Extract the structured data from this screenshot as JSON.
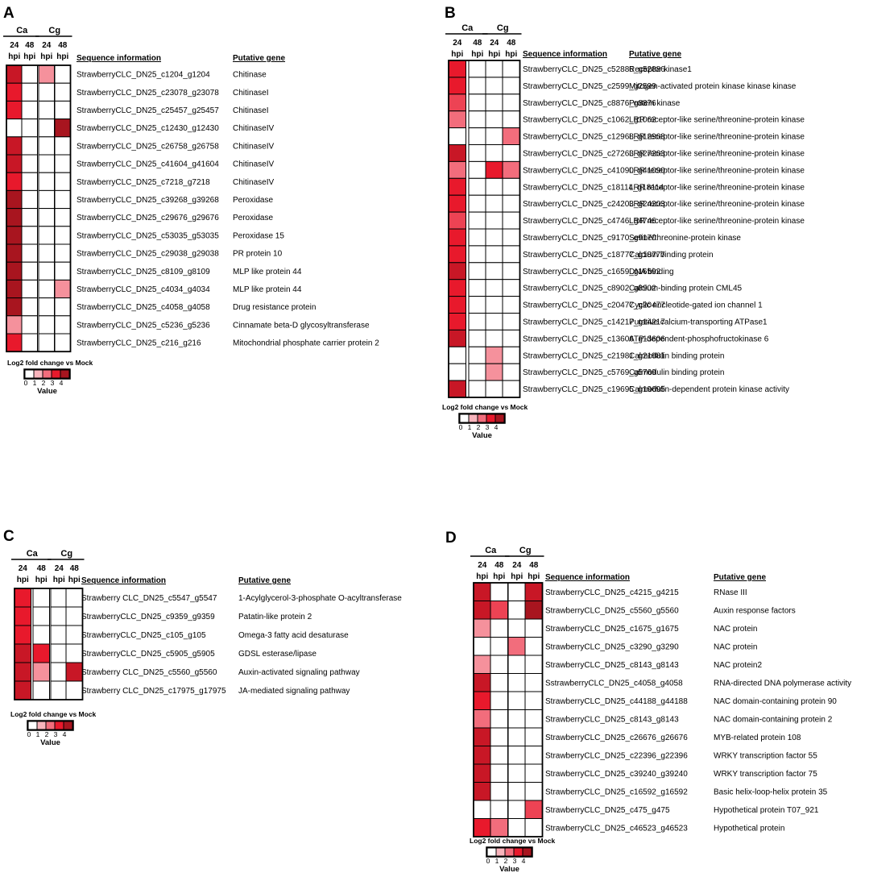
{
  "chart_data": [
    {
      "type": "heatmap",
      "panel_label": "A",
      "group_labels": [
        "Ca",
        "Cg"
      ],
      "columns": [
        [
          "24",
          "hpi"
        ],
        [
          "48",
          "hpi"
        ],
        [
          "24",
          "hpi"
        ],
        [
          "48",
          "hpi"
        ]
      ],
      "column_headers": [
        "Sequence information",
        "Putative gene"
      ],
      "rows": [
        {
          "seq": "StrawberryCLC_DN25_c1204_g1204",
          "gene": "Chitinase",
          "values": [
            3.5,
            0,
            1.5,
            0
          ]
        },
        {
          "seq": "StrawberryCLC_DN25_c23078_g23078",
          "gene": "ChitinaseI",
          "values": [
            3,
            0,
            0,
            0
          ]
        },
        {
          "seq": "StrawberryCLC_DN25_c25457_g25457",
          "gene": "ChitinaseI",
          "values": [
            3,
            0,
            0,
            0
          ]
        },
        {
          "seq": "StrawberryCLC_DN25_c12430_g12430",
          "gene": "ChitinaseIV",
          "values": [
            0,
            0,
            0,
            4
          ]
        },
        {
          "seq": "StrawberryCLC_DN25_c26758_g26758",
          "gene": "ChitinaseIV",
          "values": [
            3.5,
            0,
            0,
            0
          ]
        },
        {
          "seq": "StrawberryCLC_DN25_c41604_g41604",
          "gene": "ChitinaseIV",
          "values": [
            3.5,
            0,
            0,
            0
          ]
        },
        {
          "seq": "StrawberryCLC_DN25_c7218_g7218",
          "gene": "ChitinaseIV",
          "values": [
            3,
            0,
            0,
            0
          ]
        },
        {
          "seq": "StrawberryCLC_DN25_c39268_g39268",
          "gene": "Peroxidase",
          "values": [
            4,
            0,
            0,
            0
          ]
        },
        {
          "seq": "StrawberryCLC_DN25_c29676_g29676",
          "gene": "Peroxidase",
          "values": [
            4,
            0,
            0,
            0
          ]
        },
        {
          "seq": "StrawberryCLC_DN25_c53035_g53035",
          "gene": "Peroxidase 15",
          "values": [
            4,
            0,
            0,
            0
          ]
        },
        {
          "seq": "StrawberryCLC_DN25_c29038_g29038",
          "gene": "PR protein 10",
          "values": [
            4,
            0,
            0,
            0
          ]
        },
        {
          "seq": "StrawberryCLC_DN25_c8109_g8109",
          "gene": "MLP like protein 44",
          "values": [
            4,
            0,
            0,
            0
          ]
        },
        {
          "seq": "StrawberryCLC_DN25_c4034_g4034",
          "gene": "MLP like protein 44",
          "values": [
            4,
            0,
            0,
            1.5
          ]
        },
        {
          "seq": "StrawberryCLC_DN25_c4058_g4058",
          "gene": "Drug resistance protein",
          "values": [
            4,
            0,
            0,
            0
          ]
        },
        {
          "seq": "StrawberryCLC_DN25_c5236_g5236",
          "gene": "Cinnamate beta-D glycosyltransferase",
          "values": [
            1.5,
            0,
            0,
            0
          ]
        },
        {
          "seq": "StrawberryCLC_DN25_c216_g216",
          "gene": "Mitochondrial phosphate carrier protein 2",
          "values": [
            3,
            0,
            0,
            0
          ]
        }
      ],
      "legend": {
        "title": "Log2 fold change vs Mock",
        "ticks": [
          "0",
          "1",
          "2",
          "3",
          "4"
        ],
        "label": "Value"
      }
    },
    {
      "type": "heatmap",
      "panel_label": "B",
      "group_labels": [
        "Ca",
        "Cg"
      ],
      "columns": [
        [
          "24",
          "hpi"
        ],
        [
          "48",
          "hpi"
        ],
        [
          "24",
          "hpi"
        ],
        [
          "48",
          "hpi"
        ]
      ],
      "column_headers": [
        "Sequence information",
        "Putative gene"
      ],
      "rows": [
        {
          "seq": "StrawberryCLC_DN25_c52886_g52886",
          "gene": "Receptor kinase1",
          "values": [
            3,
            0,
            0,
            0
          ]
        },
        {
          "seq": "StrawberryCLC_DN25_c2599_g2599",
          "gene": "Mitogen-activated protein kinase kinase kinase",
          "values": [
            3,
            0,
            0,
            0
          ]
        },
        {
          "seq": "StrawberryCLC_DN25_c8876_g8876",
          "gene": "Protein kinase",
          "values": [
            2.5,
            0,
            0,
            0
          ]
        },
        {
          "seq": "StrawberryCLC_DN25_c1062_g1062",
          "gene": "LRR receptor-like serine/threonine-protein kinase",
          "values": [
            2,
            0,
            0,
            0
          ]
        },
        {
          "seq": "StrawberryCLC_DN25_c12968_g12968",
          "gene": "LRR receptor-like serine/threonine-protein kinase",
          "values": [
            0,
            0,
            0,
            2
          ]
        },
        {
          "seq": "StrawberryCLC_DN25_c27263_g27263",
          "gene": "LRR receptor-like serine/threonine-protein kinase",
          "values": [
            3.5,
            0,
            0,
            0
          ]
        },
        {
          "seq": "StrawberryCLC_DN25_c41090_g41090",
          "gene": "LRR receptor-like serine/threonine-protein kinase",
          "values": [
            2,
            0,
            3,
            2
          ]
        },
        {
          "seq": "StrawberryCLC_DN25_c18114_g18114",
          "gene": "LRR receptor-like serine/threonine-protein kinase",
          "values": [
            3,
            0,
            0,
            0
          ]
        },
        {
          "seq": "StrawberryCLC_DN25_c24203_g24203",
          "gene": "LRR receptor-like serine/threonine-protein kinase",
          "values": [
            3,
            0,
            0,
            0
          ]
        },
        {
          "seq": "StrawberryCLC_DN25_c4746_g4746",
          "gene": "LRR receptor-like serine/threonine-protein kinase",
          "values": [
            2.5,
            0,
            0,
            0
          ]
        },
        {
          "seq": "StrawberryCLC_DN25_c9170_g9170",
          "gene": "Serine/threonine-protein kinase",
          "values": [
            3,
            0,
            0,
            0
          ]
        },
        {
          "seq": "StrawberryCLC_DN25_c18777_g18777",
          "gene": "Calcium binding protein",
          "values": [
            3,
            0,
            0,
            0
          ]
        },
        {
          "seq": "StrawberryCLC_DN25_c1659_g16592",
          "gene": "DNA binding",
          "values": [
            3.5,
            0,
            0,
            0
          ]
        },
        {
          "seq": "StrawberryCLC_DN25_c8902_g8902",
          "gene": "Calcium-binding protein CML45",
          "values": [
            3,
            0,
            0,
            0
          ]
        },
        {
          "seq": "StrawberryCLC_DN25_c20477_g20477",
          "gene": "Cyclic nucleotide-gated ion channel 1",
          "values": [
            3,
            0,
            0,
            0
          ]
        },
        {
          "seq": "StrawberryCLC_DN25_c14217_g14217",
          "gene": "Putative calcium-transporting ATPase1",
          "values": [
            3,
            0,
            0,
            0
          ]
        },
        {
          "seq": "StrawberryCLC_DN25_c13606_g13606",
          "gene": "ATP-dependent-phosphofructokinase 6",
          "values": [
            3.5,
            0,
            0,
            0
          ]
        },
        {
          "seq": "StrawberryCLC_DN25_c21981_g21981",
          "gene": "Calmodulin binding protein",
          "values": [
            0,
            0,
            1.5,
            0
          ]
        },
        {
          "seq": "StrawberryCLC_DN25_c5769_g5769",
          "gene": "Calmodulin binding protein",
          "values": [
            0,
            0,
            1.5,
            0
          ]
        },
        {
          "seq": "StrawberryCLC_DN25_c19695_g19695",
          "gene": "Calmodulin-dependent protein kinase activity",
          "values": [
            3.5,
            0,
            0,
            0
          ]
        }
      ],
      "legend": {
        "title": "Log2 fold change vs Mock",
        "ticks": [
          "0",
          "1",
          "2",
          "3",
          "4"
        ],
        "label": "Value"
      }
    },
    {
      "type": "heatmap",
      "panel_label": "C",
      "group_labels": [
        "Ca",
        "Cg"
      ],
      "columns": [
        [
          "24",
          "hpi"
        ],
        [
          "48",
          "hpi"
        ],
        [
          "24",
          "hpi"
        ],
        [
          "48",
          "hpi"
        ]
      ],
      "column_headers": [
        "Sequence information",
        "Putative gene"
      ],
      "rows": [
        {
          "seq": "Strawberry CLC_DN25_c5547_g5547",
          "gene": "1-Acylglycerol-3-phosphate O-acyltransferase",
          "values": [
            3,
            0,
            0,
            0
          ]
        },
        {
          "seq": "StrawberryCLC_DN25_c9359_g9359",
          "gene": "Patatin-like protein 2",
          "values": [
            3,
            0,
            0,
            0
          ]
        },
        {
          "seq": "StrawberryCLC_DN25_c105_g105",
          "gene": "Omega-3 fatty acid desaturase",
          "values": [
            3,
            0,
            0,
            0
          ]
        },
        {
          "seq": "StrawberryCLC_DN25_c5905_g5905",
          "gene": "GDSL esterase/lipase",
          "values": [
            3.5,
            3,
            0,
            0
          ]
        },
        {
          "seq": "Strawberry CLC_DN25_c5560_g5560",
          "gene": "Auxin-activated signaling pathway",
          "values": [
            3.5,
            1.5,
            0,
            3.5
          ]
        },
        {
          "seq": "Strawberry CLC_DN25_c17975_g17975",
          "gene": "JA-mediated signaling pathway",
          "values": [
            3.5,
            0,
            0,
            0
          ]
        }
      ],
      "legend": {
        "title": "Log2 fold change vs Mock",
        "ticks": [
          "0",
          "1",
          "2",
          "3",
          "4"
        ],
        "label": "Value"
      }
    },
    {
      "type": "heatmap",
      "panel_label": "D",
      "group_labels": [
        "Ca",
        "Cg"
      ],
      "columns": [
        [
          "24",
          "hpi"
        ],
        [
          "48",
          "hpi"
        ],
        [
          "24",
          "hpi"
        ],
        [
          "48",
          "hpi"
        ]
      ],
      "column_headers": [
        "Sequence information",
        "Putative gene"
      ],
      "rows": [
        {
          "seq": "StrawberryCLC_DN25_c4215_g4215",
          "gene": "RNase III",
          "values": [
            3.5,
            0,
            0,
            3.5
          ]
        },
        {
          "seq": "StrawberryCLC_DN25_c5560_g5560",
          "gene": "Auxin response factors",
          "values": [
            3.5,
            2.5,
            0,
            4
          ]
        },
        {
          "seq": "StrawberryCLC_DN25_c1675_g1675",
          "gene": "NAC protein",
          "values": [
            1.5,
            0,
            0,
            0
          ]
        },
        {
          "seq": "StrawberryCLC_DN25_c3290_g3290",
          "gene": "NAC protein",
          "values": [
            0,
            0,
            2,
            0
          ]
        },
        {
          "seq": "StrawberryCLC_DN25_c8143_g8143",
          "gene": "NAC protein2",
          "values": [
            1.5,
            0,
            0,
            0
          ]
        },
        {
          "seq": "SstrawberryCLC_DN25_c4058_g4058",
          "gene": "RNA-directed DNA polymerase activity",
          "values": [
            3.5,
            0,
            0,
            0
          ]
        },
        {
          "seq": "StrawberryCLC_DN25_c44188_g44188",
          "gene": "NAC domain-containing protein 90",
          "values": [
            3,
            0,
            0,
            0
          ]
        },
        {
          "seq": "StrawberryCLC_DN25_c8143_g8143",
          "gene": "NAC domain-containing protein 2",
          "values": [
            2,
            0,
            0,
            0
          ]
        },
        {
          "seq": "StrawberryCLC_DN25_c26676_g26676",
          "gene": "MYB-related protein 108",
          "values": [
            3.5,
            0,
            0,
            0
          ]
        },
        {
          "seq": "StrawberryCLC_DN25_c22396_g22396",
          "gene": "WRKY transcription factor 55",
          "values": [
            3.5,
            0,
            0,
            0
          ]
        },
        {
          "seq": "StrawberryCLC_DN25_c39240_g39240",
          "gene": "WRKY transcription factor 75",
          "values": [
            3.5,
            0,
            0,
            0
          ]
        },
        {
          "seq": "StrawberryCLC_DN25_c16592_g16592",
          "gene": "Basic helix-loop-helix protein 35",
          "values": [
            3.5,
            0,
            0,
            0
          ]
        },
        {
          "seq": "StrawberryCLC_DN25_c475_g475",
          "gene": "Hypothetical protein T07_921",
          "values": [
            0,
            0,
            0,
            2.5
          ]
        },
        {
          "seq": "StrawberryCLC_DN25_c46523_g46523",
          "gene": "Hypothetical protein",
          "values": [
            3,
            2,
            0,
            0
          ]
        }
      ],
      "legend": {
        "title": "Log2 fold change vs Mock",
        "ticks": [
          "0",
          "1",
          "2",
          "3",
          "4"
        ],
        "label": "Value"
      }
    }
  ],
  "colors": {
    "scale": [
      "#ffffff",
      "#f8b4bc",
      "#f26d7c",
      "#e8192c",
      "#a8151f"
    ]
  }
}
